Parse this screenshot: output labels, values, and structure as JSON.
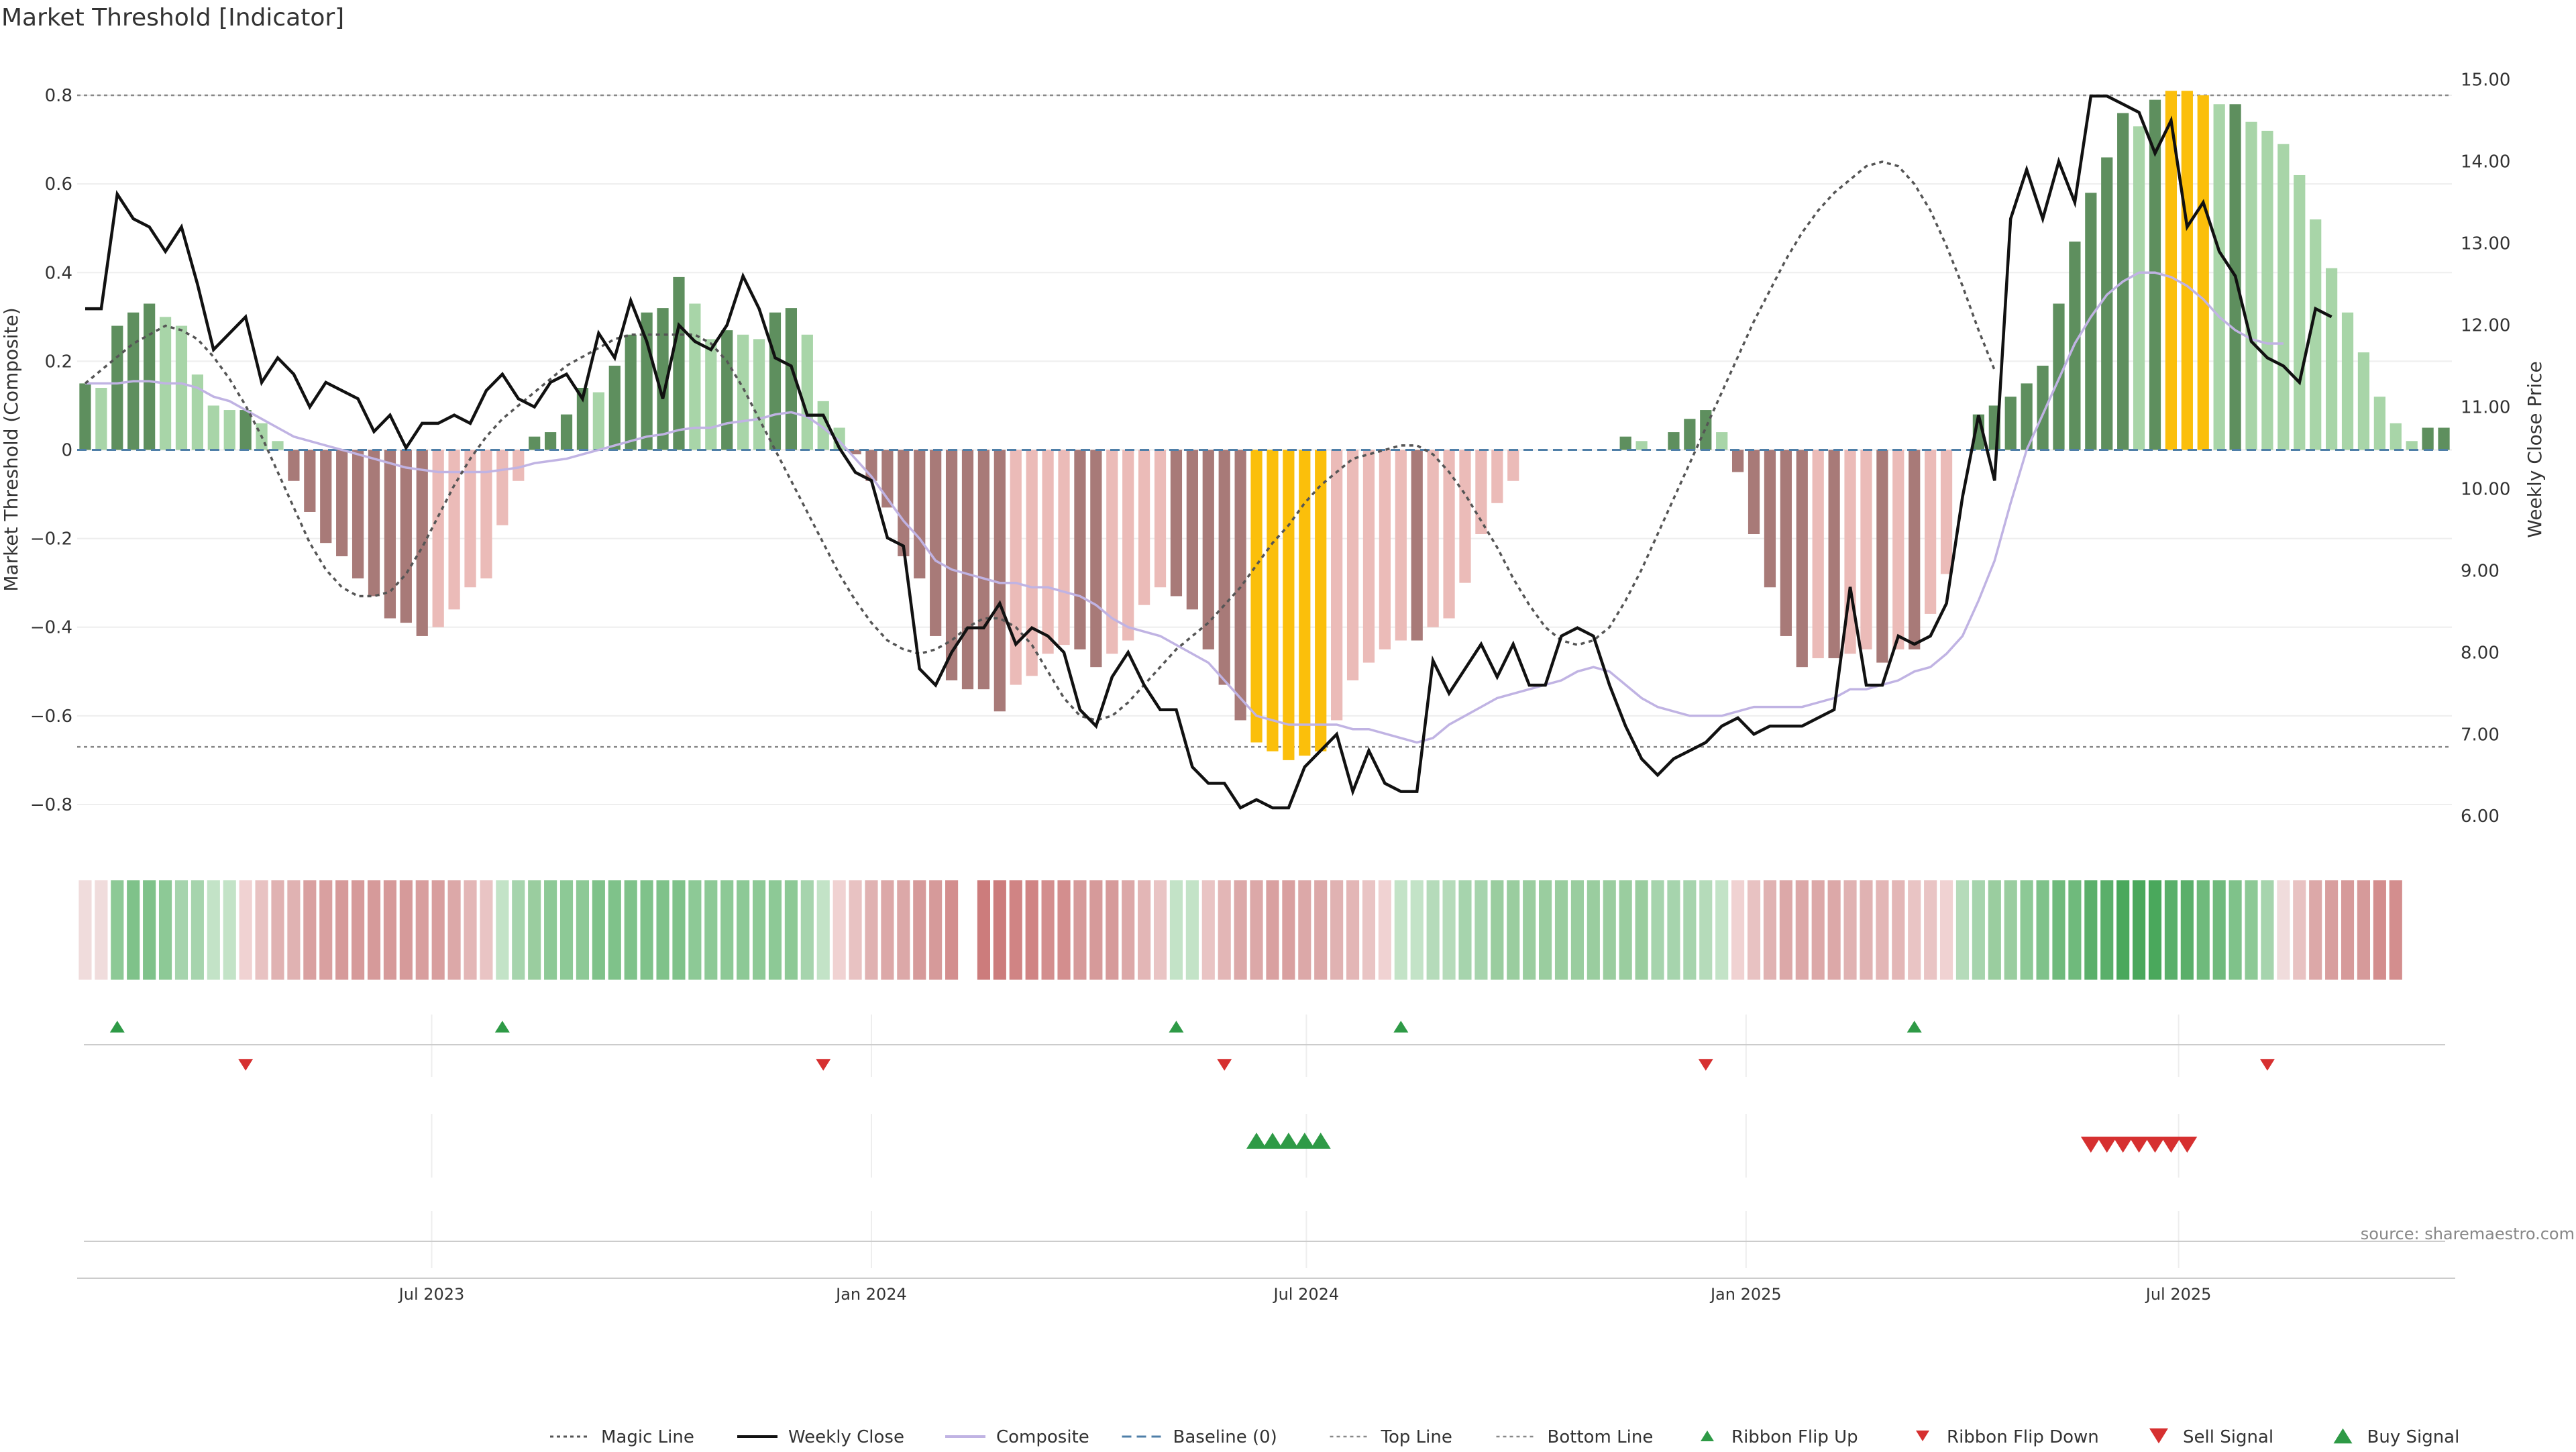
{
  "chart_data": {
    "type": "bar",
    "title": "Market Threshold [Indicator]",
    "ylabel": "Market Threshold (Composite)",
    "y2label": "Weekly Close Price",
    "ylim": [
      -0.9,
      0.9
    ],
    "y2lim": [
      5.6,
      15.35
    ],
    "yticks": [
      0.8,
      0.6,
      0.4,
      0.2,
      0,
      -0.2,
      -0.4,
      -0.6,
      -0.8
    ],
    "ytick_labels": [
      "0.8",
      "0.6",
      "0.4",
      "0.2",
      "0",
      "−0.2",
      "−0.4",
      "−0.6",
      "−0.8"
    ],
    "y2ticks": [
      15,
      14,
      13,
      12,
      11,
      10,
      9,
      8,
      7,
      6
    ],
    "y2tick_labels": [
      "15.00",
      "14.00",
      "13.00",
      "12.00",
      "11.00",
      "10.00",
      "9.00",
      "8.00",
      "7.00",
      "6.00"
    ],
    "start_date": "2023-02-06",
    "end_date": "2025-10-20",
    "xticks": [
      {
        "date": "2023-07-01",
        "label": "Jul 2023"
      },
      {
        "date": "2024-01-01",
        "label": "Jan 2024"
      },
      {
        "date": "2024-07-01",
        "label": "Jul 2024"
      },
      {
        "date": "2025-01-01",
        "label": "Jan 2025"
      },
      {
        "date": "2025-07-01",
        "label": "Jul 2025"
      }
    ],
    "top_line": 0.8,
    "bottom_line": -0.67,
    "grid": true,
    "source": "source: sharemaestro.com",
    "colors": {
      "pos_strong": "#5e8f5e",
      "pos_light": "#a8d5a8",
      "neg_strong": "#a87a78",
      "neg_light": "#ebbbb8",
      "extreme": "#fbbf0b",
      "close": "#111111",
      "composite": "#c0b3e3",
      "magic": "#555555",
      "baseline": "#4f7fa8",
      "buy": "#2e9a46",
      "sell": "#d63030"
    },
    "composite_bars": [
      0.15,
      0.14,
      0.28,
      0.31,
      0.33,
      0.3,
      0.28,
      0.17,
      0.1,
      0.09,
      0.09,
      0.06,
      0.02,
      -0.07,
      -0.14,
      -0.21,
      -0.24,
      -0.29,
      -0.33,
      -0.38,
      -0.39,
      -0.42,
      -0.4,
      -0.36,
      -0.31,
      -0.29,
      -0.17,
      -0.07,
      0.03,
      0.04,
      0.08,
      0.14,
      0.13,
      0.19,
      0.26,
      0.31,
      0.32,
      0.39,
      0.33,
      0.25,
      0.27,
      0.26,
      0.25,
      0.31,
      0.32,
      0.26,
      0.11,
      0.05,
      -0.01,
      -0.07,
      -0.13,
      -0.24,
      -0.29,
      -0.42,
      -0.52,
      -0.54,
      -0.54,
      -0.59,
      -0.53,
      -0.51,
      -0.46,
      -0.44,
      -0.45,
      -0.49,
      -0.46,
      -0.43,
      -0.35,
      -0.31,
      -0.33,
      -0.36,
      -0.45,
      -0.53,
      -0.61,
      -0.66,
      -0.68,
      -0.7,
      -0.69,
      -0.68,
      -0.61,
      -0.52,
      -0.48,
      -0.45,
      -0.43,
      -0.43,
      -0.4,
      -0.38,
      -0.3,
      -0.19,
      -0.12,
      -0.07,
      0.0,
      0.0,
      0.0,
      0.0,
      0.0,
      0.0,
      0.03,
      0.02,
      0.0,
      0.04,
      0.07,
      0.09,
      0.04,
      -0.05,
      -0.19,
      -0.31,
      -0.42,
      -0.49,
      -0.47,
      -0.47,
      -0.46,
      -0.45,
      -0.48,
      -0.45,
      -0.45,
      -0.37,
      -0.28,
      0.0,
      0.08,
      0.1,
      0.12,
      0.15,
      0.19,
      0.33,
      0.47,
      0.58,
      0.66,
      0.76,
      0.73,
      0.79,
      0.81,
      0.81,
      0.8,
      0.78,
      0.78,
      0.74,
      0.72,
      0.69,
      0.62,
      0.52,
      0.41,
      0.31,
      0.22,
      0.12,
      0.06,
      0.02,
      0.05,
      0.05
    ],
    "weekly_close": [
      12.2,
      12.2,
      13.6,
      13.3,
      13.2,
      12.9,
      13.2,
      12.5,
      11.7,
      11.9,
      12.1,
      11.3,
      11.6,
      11.4,
      11.0,
      11.3,
      11.2,
      11.1,
      10.7,
      10.9,
      10.5,
      10.8,
      10.8,
      10.9,
      10.8,
      11.2,
      11.4,
      11.1,
      11.0,
      11.3,
      11.4,
      11.1,
      11.9,
      11.6,
      12.3,
      11.8,
      11.1,
      12.0,
      11.8,
      11.7,
      12.0,
      12.6,
      12.2,
      11.6,
      11.5,
      10.9,
      10.9,
      10.5,
      10.2,
      10.1,
      9.4,
      9.3,
      7.8,
      7.6,
      8.0,
      8.3,
      8.3,
      8.6,
      8.1,
      8.3,
      8.2,
      8.0,
      7.3,
      7.1,
      7.7,
      8.0,
      7.6,
      7.3,
      7.3,
      6.6,
      6.4,
      6.4,
      6.1,
      6.2,
      6.1,
      6.1,
      6.6,
      6.8,
      7.0,
      6.3,
      6.8,
      6.4,
      6.3,
      6.3,
      7.9,
      7.5,
      7.8,
      8.1,
      7.7,
      8.1,
      7.6,
      7.6,
      8.2,
      8.3,
      8.2,
      7.6,
      7.1,
      6.7,
      6.5,
      6.7,
      6.8,
      6.9,
      7.1,
      7.2,
      7.0,
      7.1,
      7.1,
      7.1,
      7.2,
      7.3,
      8.8,
      7.6,
      7.6,
      8.2,
      8.1,
      8.2,
      8.6,
      9.9,
      10.9,
      10.1,
      13.3,
      13.9,
      13.3,
      14.0,
      13.5,
      14.8,
      14.8,
      14.7,
      14.6,
      14.1,
      14.5,
      13.2,
      13.5,
      12.9,
      12.6,
      11.8,
      11.6,
      11.5,
      11.3,
      12.2,
      12.1
    ],
    "composite_line": [
      0.15,
      0.15,
      0.15,
      0.155,
      0.155,
      0.15,
      0.15,
      0.14,
      0.12,
      0.11,
      0.09,
      0.07,
      0.05,
      0.03,
      0.02,
      0.01,
      0.0,
      -0.01,
      -0.02,
      -0.03,
      -0.04,
      -0.045,
      -0.05,
      -0.05,
      -0.05,
      -0.05,
      -0.045,
      -0.04,
      -0.03,
      -0.025,
      -0.02,
      -0.01,
      0.0,
      0.01,
      0.02,
      0.03,
      0.035,
      0.045,
      0.05,
      0.05,
      0.06,
      0.065,
      0.07,
      0.08,
      0.085,
      0.075,
      0.05,
      0.02,
      -0.02,
      -0.06,
      -0.11,
      -0.16,
      -0.2,
      -0.25,
      -0.27,
      -0.28,
      -0.29,
      -0.3,
      -0.3,
      -0.31,
      -0.31,
      -0.32,
      -0.33,
      -0.35,
      -0.38,
      -0.4,
      -0.41,
      -0.42,
      -0.44,
      -0.46,
      -0.48,
      -0.52,
      -0.56,
      -0.6,
      -0.61,
      -0.62,
      -0.62,
      -0.62,
      -0.62,
      -0.63,
      -0.63,
      -0.64,
      -0.65,
      -0.66,
      -0.65,
      -0.62,
      -0.6,
      -0.58,
      -0.56,
      -0.55,
      -0.54,
      -0.53,
      -0.52,
      -0.5,
      -0.49,
      -0.5,
      -0.53,
      -0.56,
      -0.58,
      -0.59,
      -0.6,
      -0.6,
      -0.6,
      -0.59,
      -0.58,
      -0.58,
      -0.58,
      -0.58,
      -0.57,
      -0.56,
      -0.54,
      -0.54,
      -0.53,
      -0.52,
      -0.5,
      -0.49,
      -0.46,
      -0.42,
      -0.34,
      -0.25,
      -0.12,
      0.0,
      0.08,
      0.16,
      0.24,
      0.3,
      0.35,
      0.38,
      0.4,
      0.4,
      0.39,
      0.37,
      0.34,
      0.3,
      0.27,
      0.25,
      0.24,
      0.24
    ],
    "magic_line": [
      0.15,
      0.18,
      0.21,
      0.24,
      0.26,
      0.28,
      0.27,
      0.25,
      0.21,
      0.16,
      0.1,
      0.03,
      -0.05,
      -0.13,
      -0.21,
      -0.27,
      -0.31,
      -0.33,
      -0.33,
      -0.32,
      -0.28,
      -0.22,
      -0.15,
      -0.08,
      -0.02,
      0.03,
      0.07,
      0.1,
      0.13,
      0.16,
      0.19,
      0.21,
      0.23,
      0.25,
      0.26,
      0.26,
      0.26,
      0.26,
      0.26,
      0.24,
      0.2,
      0.14,
      0.07,
      0.0,
      -0.07,
      -0.14,
      -0.21,
      -0.28,
      -0.34,
      -0.39,
      -0.43,
      -0.45,
      -0.46,
      -0.45,
      -0.43,
      -0.4,
      -0.38,
      -0.38,
      -0.4,
      -0.44,
      -0.5,
      -0.56,
      -0.6,
      -0.61,
      -0.6,
      -0.57,
      -0.53,
      -0.49,
      -0.45,
      -0.42,
      -0.39,
      -0.35,
      -0.31,
      -0.26,
      -0.21,
      -0.17,
      -0.12,
      -0.08,
      -0.05,
      -0.02,
      -0.01,
      0.0,
      0.01,
      0.01,
      -0.01,
      -0.05,
      -0.1,
      -0.16,
      -0.22,
      -0.29,
      -0.35,
      -0.4,
      -0.43,
      -0.44,
      -0.43,
      -0.4,
      -0.34,
      -0.27,
      -0.19,
      -0.11,
      -0.03,
      0.05,
      0.13,
      0.21,
      0.29,
      0.36,
      0.43,
      0.49,
      0.54,
      0.58,
      0.61,
      0.64,
      0.65,
      0.64,
      0.6,
      0.54,
      0.46,
      0.37,
      0.27,
      0.18
    ],
    "ribbon_colors": [
      "#f0dcdc",
      "#f0dcdc",
      "#8dc996",
      "#7fc28a",
      "#7fc28a",
      "#8dc996",
      "#a6d4ad",
      "#a6d4ad",
      "#c3e3c7",
      "#c3e3c7",
      "#f0d2d2",
      "#e8c2c2",
      "#e0b2b2",
      "#e0b2b2",
      "#d9a0a0",
      "#d9a0a0",
      "#d69a9a",
      "#d69a9a",
      "#d69a9a",
      "#d69a9a",
      "#d69a9a",
      "#d89e9e",
      "#d89e9e",
      "#dca8a8",
      "#e3b6b6",
      "#e9c4c4",
      "#c3e3c7",
      "#a6d4ad",
      "#9acd9f",
      "#8dc996",
      "#8dc996",
      "#8dc996",
      "#7fc28a",
      "#7fc28a",
      "#7fc28a",
      "#7fc28a",
      "#7fc28a",
      "#7fc28a",
      "#8dc996",
      "#8dc996",
      "#8dc996",
      "#8dc996",
      "#8dc996",
      "#8dc996",
      "#8dc996",
      "#a6d4ad",
      "#c3e3c7",
      "#f0d2d2",
      "#e8c2c2",
      "#e0b2b2",
      "#dca8a8",
      "#dca8a8",
      "#d69a9a",
      "#d69a9a",
      "#d38e8e",
      null,
      "#cc7c7c",
      "#cc7c7c",
      "#d08484",
      "#d08484",
      "#d38e8e",
      "#d38e8e",
      "#d69a9a",
      "#d69a9a",
      "#d69a9a",
      "#dca8a8",
      "#e3b6b6",
      "#e9c4c4",
      "#c3e3c7",
      "#c3e3c7",
      "#e9c4c4",
      "#e3b6b6",
      "#dca8a8",
      "#dca8a8",
      "#d9a0a0",
      "#d9a0a0",
      "#dca8a8",
      "#dca8a8",
      "#e0b2b2",
      "#e3b6b6",
      "#e9c4c4",
      "#f0d2d2",
      "#c3e3c7",
      "#c3e3c7",
      "#b5dbba",
      "#b5dbba",
      "#a6d4ad",
      "#a6d4ad",
      "#9acd9f",
      "#9acd9f",
      "#9acd9f",
      "#9acd9f",
      "#9acd9f",
      "#9acd9f",
      "#9acd9f",
      "#9acd9f",
      "#9acd9f",
      "#9acd9f",
      "#a6d4ad",
      "#a6d4ad",
      "#a6d4ad",
      "#b5dbba",
      "#c3e3c7",
      "#f0d2d2",
      "#e8c2c2",
      "#e0b2b2",
      "#dca8a8",
      "#dca8a8",
      "#dca8a8",
      "#dca8a8",
      "#e0b2b2",
      "#e0b2b2",
      "#e3b6b6",
      "#e3b6b6",
      "#e9c4c4",
      "#e9c4c4",
      "#f0d2d2",
      "#b5dbba",
      "#a6d4ad",
      "#9acd9f",
      "#9acd9f",
      "#8dc996",
      "#7fc28a",
      "#6fba7c",
      "#6fba7c",
      "#5aaf6a",
      "#5aaf6a",
      "#4aa85c",
      "#4aa85c",
      "#4aa85c",
      "#5aaf6a",
      "#5aaf6a",
      "#6fba7c",
      "#6fba7c",
      "#7fc28a",
      "#8dc996",
      "#a6d4ad",
      "#f0dcdc",
      "#e8c2c2",
      "#dca8a8",
      "#d89e9e",
      "#d69a9a",
      "#d69a9a",
      "#d38e8e",
      "#d38e8e"
    ],
    "ribbon_flip_up_weeks": [
      2,
      26,
      68,
      82,
      114
    ],
    "ribbon_flip_down_weeks": [
      10,
      46,
      71,
      101,
      136
    ],
    "buy_signal_weeks": [
      73,
      74,
      75,
      76,
      77
    ],
    "sell_signal_weeks": [
      125,
      126,
      127,
      128,
      129,
      130,
      131
    ],
    "legend": [
      {
        "key": "magic",
        "label": "Magic Line"
      },
      {
        "key": "close",
        "label": "Weekly Close"
      },
      {
        "key": "composite",
        "label": "Composite"
      },
      {
        "key": "baseline",
        "label": "Baseline (0)"
      },
      {
        "key": "top",
        "label": "Top Line"
      },
      {
        "key": "bottom",
        "label": "Bottom Line"
      },
      {
        "key": "flip_up",
        "label": "Ribbon Flip Up"
      },
      {
        "key": "flip_down",
        "label": "Ribbon Flip Down"
      },
      {
        "key": "sell",
        "label": "Sell Signal"
      },
      {
        "key": "buy",
        "label": "Buy Signal"
      }
    ]
  }
}
